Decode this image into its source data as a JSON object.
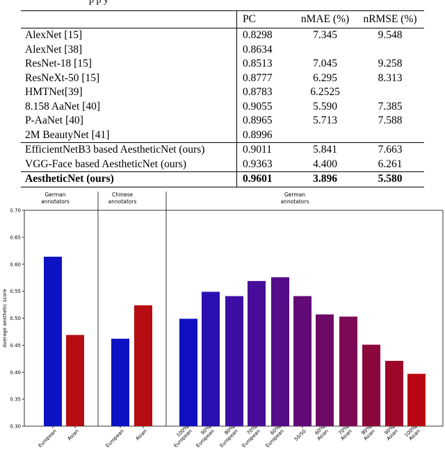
{
  "table": {
    "caption_fragment": "p         p                        y",
    "headers": [
      "",
      "PC",
      "nMAE (%)",
      "nRMSE (%)"
    ],
    "rows": [
      {
        "name": "AlexNet [15]",
        "pc": "0.8298",
        "nmae": "7.345",
        "nrmse": "9.548"
      },
      {
        "name": "AlexNet [38]",
        "pc": "0.8634",
        "nmae": "",
        "nrmse": ""
      },
      {
        "name": "ResNet-18 [15]",
        "pc": "0.8513",
        "nmae": "7.045",
        "nrmse": "9.258"
      },
      {
        "name": "ResNeXt-50 [15]",
        "pc": "0.8777",
        "nmae": "6.295",
        "nrmse": "8.313"
      },
      {
        "name": "HMTNet[39]",
        "pc": "0.8783",
        "nmae": "6.2525",
        "nrmse": ""
      },
      {
        "name": "8.158 AaNet [40]",
        "pc": "0.9055",
        "nmae": "5.590",
        "nrmse": "7.385"
      },
      {
        "name": "P-AaNet [40]",
        "pc": "0.8965",
        "nmae": "5.713",
        "nrmse": "7.588"
      },
      {
        "name": "2M BeautyNet [41]",
        "pc": "0.8996",
        "nmae": "",
        "nrmse": ""
      },
      {
        "name": "EfficientNetB3 based AestheticNet (ours)",
        "pc": "0.9011",
        "nmae": "5.841",
        "nrmse": "7.663"
      },
      {
        "name": "VGG-Face based AestheticNet (ours)",
        "pc": "0.9363",
        "nmae": "4.400",
        "nrmse": "6.261"
      },
      {
        "name": "AestheticNet (ours)",
        "pc": "0.9601",
        "nmae": "3.896",
        "nrmse": "5.580"
      }
    ]
  },
  "chart_data": {
    "type": "bar",
    "ylabel": "Average aesthetic score",
    "ylim": [
      0.3,
      0.7
    ],
    "yticks": [
      "0.30",
      "0.35",
      "0.40",
      "0.45",
      "0.50",
      "0.55",
      "0.60",
      "0.65",
      "0.70"
    ],
    "groups": [
      {
        "title": [
          "German",
          "annotators"
        ],
        "start": 0,
        "end": 2
      },
      {
        "title": [
          "Chinese",
          "annotators"
        ],
        "start": 2,
        "end": 4
      },
      {
        "title": [
          "German",
          "annotators"
        ],
        "start": 4,
        "end": 15
      }
    ],
    "bars": [
      {
        "label": [
          "European"
        ],
        "value": 0.614,
        "color": "#0d12c4"
      },
      {
        "label": [
          "Asian"
        ],
        "value": 0.469,
        "color": "#b50d12"
      },
      {
        "label": [
          "European"
        ],
        "value": 0.462,
        "color": "#0d12c4"
      },
      {
        "label": [
          "Asian"
        ],
        "value": 0.524,
        "color": "#b50d12"
      },
      {
        "label": [
          "100%",
          "European"
        ],
        "value": 0.499,
        "color": "#1010c0"
      },
      {
        "label": [
          "90%",
          "European"
        ],
        "value": 0.549,
        "color": "#2c0fb0"
      },
      {
        "label": [
          "80%",
          "European"
        ],
        "value": 0.541,
        "color": "#3c0ea4"
      },
      {
        "label": [
          "70%",
          "European"
        ],
        "value": 0.569,
        "color": "#480d98"
      },
      {
        "label": [
          "60%",
          "European"
        ],
        "value": 0.576,
        "color": "#540c88"
      },
      {
        "label": [
          "50/50"
        ],
        "value": 0.541,
        "color": "#620b78"
      },
      {
        "label": [
          "60%",
          "Asian"
        ],
        "value": 0.507,
        "color": "#6e0a66"
      },
      {
        "label": [
          "70%",
          "Asian"
        ],
        "value": 0.503,
        "color": "#7c0954"
      },
      {
        "label": [
          "80%",
          "Asian"
        ],
        "value": 0.451,
        "color": "#8c083c"
      },
      {
        "label": [
          "90%",
          "Asian"
        ],
        "value": 0.421,
        "color": "#9e0728"
      },
      {
        "label": [
          "100%",
          "Asian"
        ],
        "value": 0.397,
        "color": "#b80612"
      }
    ]
  }
}
